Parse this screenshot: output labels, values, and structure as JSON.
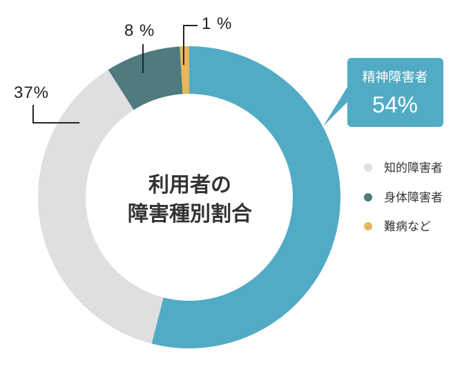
{
  "chart_data": {
    "type": "pie",
    "title": [
      "利用者の",
      "障害種別割合"
    ],
    "categories": [
      "精神障害者",
      "知的障害者",
      "身体障害者",
      "難病など"
    ],
    "values": [
      54,
      37,
      8,
      1
    ],
    "unit": "%",
    "colors": [
      "#52abc4",
      "#dfdfe1",
      "#4f7a7e",
      "#e8b75b"
    ],
    "labels": {
      "mental": {
        "name": "精神障害者",
        "value": "54%"
      },
      "intellectual": "37%",
      "physical": "8 %",
      "intractable": "1 %"
    },
    "legend": {
      "position": "right",
      "items": [
        {
          "label": "知的障害者",
          "color": "#dfdfe1"
        },
        {
          "label": "身体障害者",
          "color": "#4f7a7e"
        },
        {
          "label": "難病など",
          "color": "#e8b75b"
        }
      ]
    }
  }
}
